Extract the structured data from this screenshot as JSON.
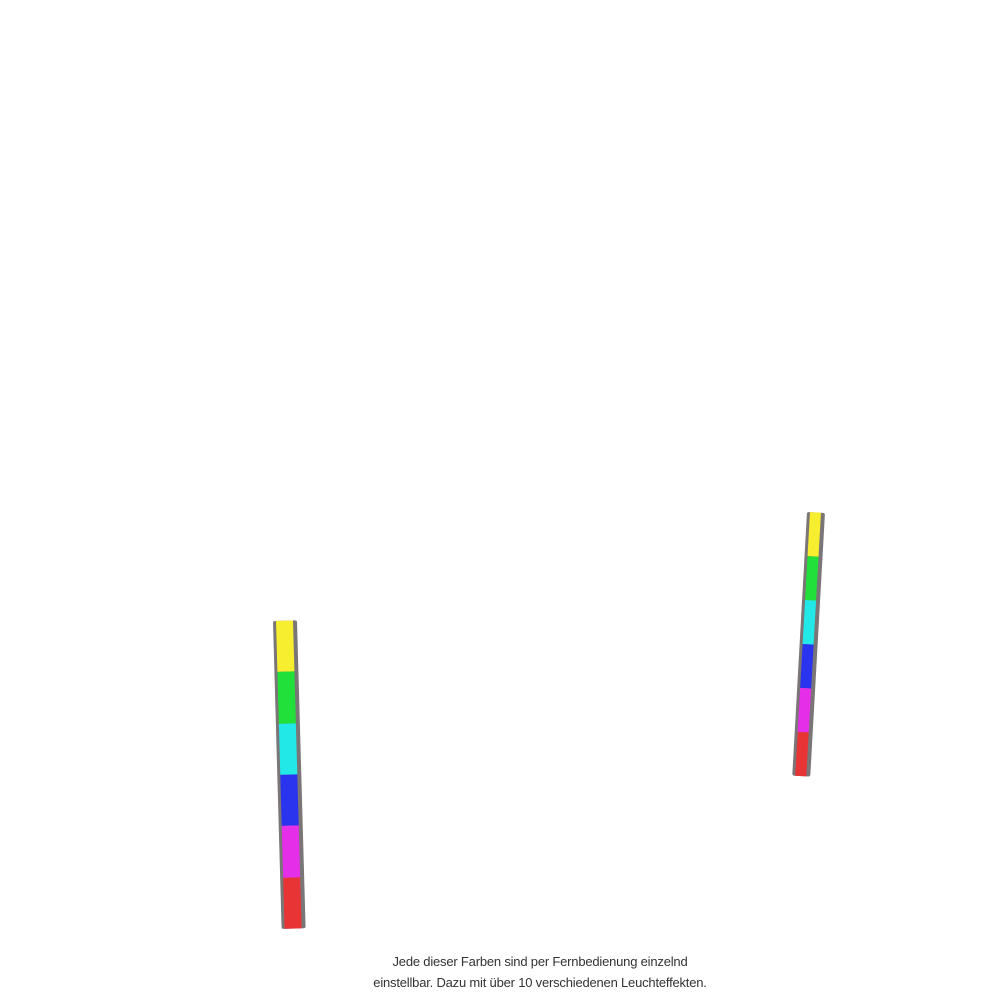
{
  "caption": {
    "line1": "Jede dieser Farben sind per Fernbedienung einzelnd",
    "line2": "einstellbar. Dazu mit über 10 verschiedenen Leuchteffekten."
  },
  "strips": {
    "frame_color": "#7a7577",
    "colors": [
      "#f8ee30",
      "#22e03a",
      "#22e8e8",
      "#2a33ee",
      "#e52ee8",
      "#e83434"
    ]
  }
}
